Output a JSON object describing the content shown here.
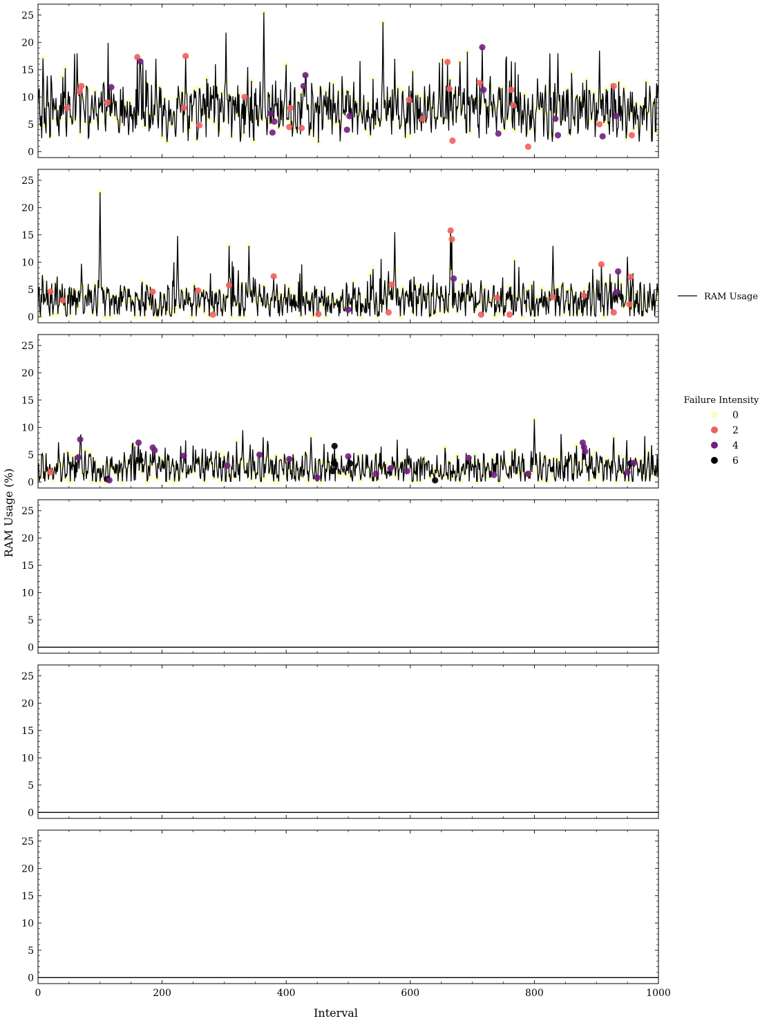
{
  "chart_data": {
    "type": "line",
    "ylabel": "RAM Usage (%)",
    "xlabel": "Interval",
    "xlim": [
      0,
      1000
    ],
    "ylim": [
      -1.1,
      27
    ],
    "x_ticks": [
      0,
      200,
      400,
      600,
      800,
      1000
    ],
    "y_ticks": [
      0,
      5,
      10,
      15,
      20,
      25
    ],
    "legend_line_label": "RAM Usage",
    "legend_title": "Failure Intensity",
    "legend_placement": "right",
    "failure_levels": [
      {
        "label": "0",
        "color": "#fcfdbf"
      },
      {
        "label": "2",
        "color": "#f1605d"
      },
      {
        "label": "4",
        "color": "#721f81"
      },
      {
        "label": "6",
        "color": "#000004"
      }
    ],
    "line_color": "#000000",
    "panels": [
      {
        "series_name": "RAM Usage",
        "baseline": 6.2,
        "noise": 3.6,
        "spikes": [
          [
            63,
            18
          ],
          [
            102,
            11
          ],
          [
            164,
            16.5
          ],
          [
            190,
            17
          ],
          [
            238,
            17.5
          ],
          [
            303,
            21.8
          ],
          [
            364,
            25.5
          ],
          [
            383,
            13
          ],
          [
            432,
            14
          ],
          [
            500,
            11
          ],
          [
            556,
            23.7
          ],
          [
            575,
            17
          ],
          [
            647,
            16.3
          ],
          [
            680,
            16.5
          ],
          [
            716,
            19
          ],
          [
            760,
            13
          ],
          [
            838,
            18
          ],
          [
            905,
            18.5
          ],
          [
            955,
            11
          ]
        ],
        "failures": [
          [
            47,
            8,
            2
          ],
          [
            67,
            11,
            2
          ],
          [
            70,
            12,
            2
          ],
          [
            112,
            9,
            2
          ],
          [
            118,
            11.8,
            4
          ],
          [
            160,
            17.3,
            2
          ],
          [
            165,
            16.5,
            4
          ],
          [
            235,
            8,
            2
          ],
          [
            238,
            17.5,
            2
          ],
          [
            260,
            4.8,
            2
          ],
          [
            333,
            10,
            2
          ],
          [
            375,
            7,
            4
          ],
          [
            378,
            3.5,
            4
          ],
          [
            381,
            5.5,
            4
          ],
          [
            405,
            4.5,
            2
          ],
          [
            407,
            8,
            2
          ],
          [
            425,
            4.3,
            2
          ],
          [
            428,
            12,
            4
          ],
          [
            431,
            14,
            4
          ],
          [
            498,
            4,
            4
          ],
          [
            502,
            6.5,
            4
          ],
          [
            598,
            9.5,
            2
          ],
          [
            620,
            6,
            2
          ],
          [
            660,
            16.4,
            2
          ],
          [
            663,
            11.5,
            2
          ],
          [
            668,
            2,
            2
          ],
          [
            712,
            12.6,
            2
          ],
          [
            716,
            19.1,
            4
          ],
          [
            718,
            11.3,
            4
          ],
          [
            742,
            3.3,
            4
          ],
          [
            763,
            11.3,
            2
          ],
          [
            766,
            8.5,
            2
          ],
          [
            790,
            0.9,
            2
          ],
          [
            834,
            6,
            4
          ],
          [
            838,
            3,
            4
          ],
          [
            905,
            5,
            2
          ],
          [
            910,
            2.8,
            4
          ],
          [
            928,
            12,
            2
          ],
          [
            932,
            6.5,
            4
          ],
          [
            957,
            3,
            2
          ]
        ]
      },
      {
        "series_name": "RAM Usage",
        "baseline": 1.9,
        "noise": 2.6,
        "spikes": [
          [
            100,
            22.8
          ],
          [
            225,
            14.8
          ],
          [
            308,
            13
          ],
          [
            340,
            13
          ],
          [
            575,
            15.5
          ],
          [
            665,
            15.8
          ],
          [
            830,
            13
          ],
          [
            950,
            11
          ]
        ],
        "failures": [
          [
            20,
            4.6,
            2
          ],
          [
            40,
            3,
            2
          ],
          [
            185,
            4.6,
            2
          ],
          [
            258,
            4.8,
            2
          ],
          [
            282,
            0.4,
            2
          ],
          [
            308,
            5.8,
            2
          ],
          [
            380,
            7.4,
            2
          ],
          [
            452,
            0.5,
            2
          ],
          [
            500,
            1.3,
            4
          ],
          [
            565,
            0.8,
            2
          ],
          [
            570,
            5.9,
            2
          ],
          [
            665,
            15.8,
            2
          ],
          [
            667,
            14.2,
            2
          ],
          [
            670,
            7,
            4
          ],
          [
            714,
            0.4,
            2
          ],
          [
            740,
            3.5,
            2
          ],
          [
            760,
            0.4,
            2
          ],
          [
            830,
            3.6,
            2
          ],
          [
            880,
            3.9,
            2
          ],
          [
            908,
            9.6,
            2
          ],
          [
            928,
            0.8,
            2
          ],
          [
            932,
            4.5,
            4
          ],
          [
            935,
            8.3,
            4
          ],
          [
            953,
            2.3,
            2
          ],
          [
            955,
            7.3,
            2
          ]
        ]
      },
      {
        "series_name": "RAM Usage",
        "baseline": 1.7,
        "noise": 2.1,
        "spikes": [
          [
            68,
            7.8
          ],
          [
            165,
            6
          ],
          [
            330,
            9.5
          ],
          [
            440,
            8.2
          ],
          [
            800,
            11.5
          ],
          [
            880,
            7
          ]
        ],
        "failures": [
          [
            20,
            1.8,
            2
          ],
          [
            65,
            4.5,
            4
          ],
          [
            68,
            7.8,
            4
          ],
          [
            112,
            0.5,
            6
          ],
          [
            115,
            0.3,
            4
          ],
          [
            162,
            7.2,
            4
          ],
          [
            165,
            4,
            6
          ],
          [
            185,
            6.3,
            4
          ],
          [
            188,
            5.8,
            4
          ],
          [
            235,
            4.8,
            4
          ],
          [
            305,
            3,
            4
          ],
          [
            357,
            5,
            4
          ],
          [
            405,
            4.2,
            4
          ],
          [
            450,
            0.8,
            4
          ],
          [
            475,
            2,
            6
          ],
          [
            477,
            3.5,
            6
          ],
          [
            478,
            6.6,
            6
          ],
          [
            500,
            4.7,
            4
          ],
          [
            503,
            3.4,
            6
          ],
          [
            545,
            1.5,
            4
          ],
          [
            568,
            2.5,
            4
          ],
          [
            595,
            2,
            4
          ],
          [
            640,
            0.3,
            6
          ],
          [
            694,
            4.4,
            4
          ],
          [
            735,
            1.3,
            4
          ],
          [
            790,
            1.5,
            4
          ],
          [
            878,
            7.2,
            4
          ],
          [
            880,
            6.4,
            4
          ],
          [
            882,
            5.6,
            4
          ],
          [
            950,
            1.8,
            4
          ],
          [
            955,
            3.4,
            6
          ],
          [
            960,
            3.5,
            4
          ]
        ]
      },
      {
        "series_name": "RAM Usage",
        "flat_value": 0
      },
      {
        "series_name": "RAM Usage",
        "flat_value": 0
      },
      {
        "series_name": "RAM Usage",
        "flat_value": 0
      }
    ]
  }
}
